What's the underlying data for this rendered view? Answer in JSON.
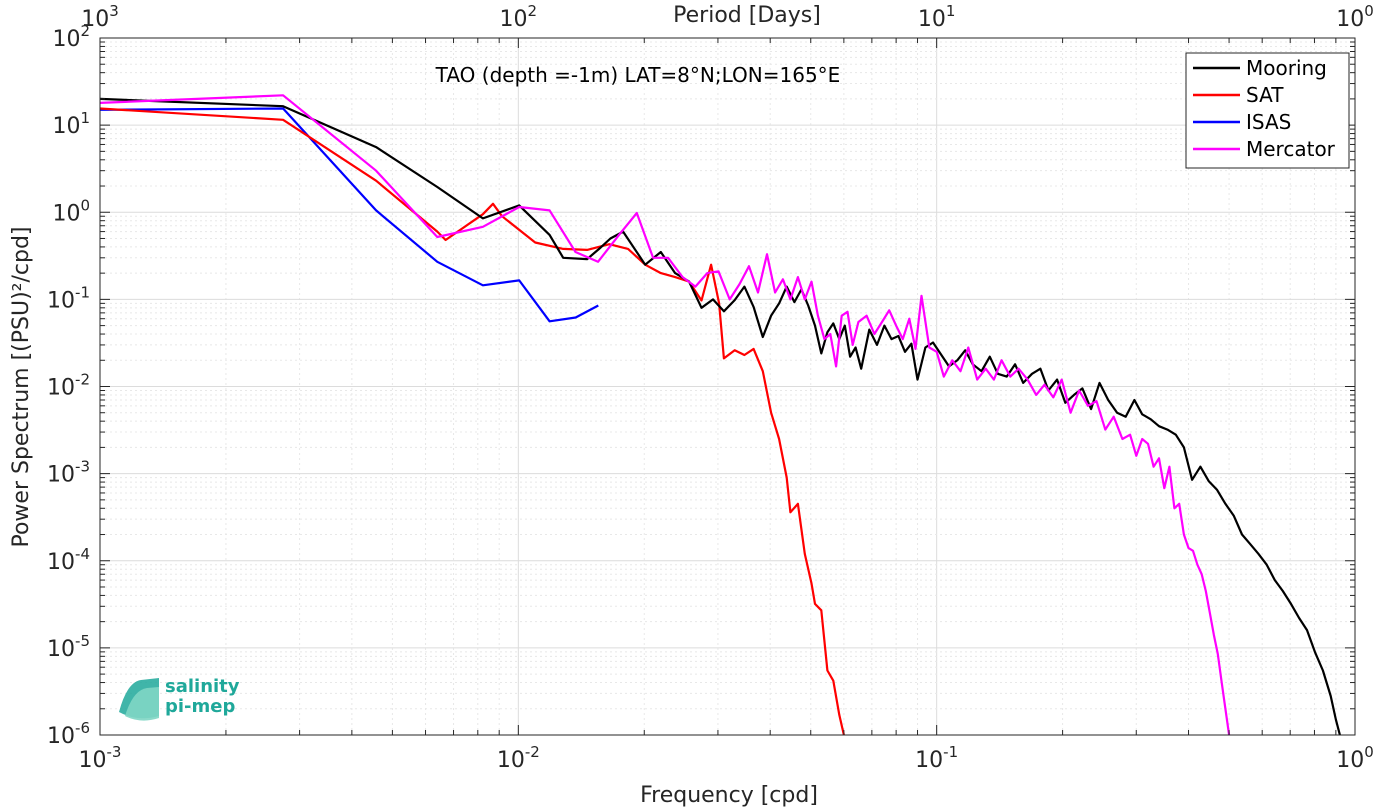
{
  "chart_data": {
    "type": "line",
    "title": "TAO (depth =-1m) LAT=8°N;LON=165°E",
    "xlabel": "Frequency [cpd]",
    "ylabel": "Power Spectrum [(PSU)²/cpd]",
    "top_xlabel": "Period [Days]",
    "x_scale": "log",
    "y_scale": "log",
    "xlim": [
      0.001,
      1
    ],
    "ylim": [
      1e-06,
      100
    ],
    "grid": true,
    "legend_position": "top-right",
    "x_ticks": [
      {
        "base": "10",
        "exp": "-3",
        "value": 0.001
      },
      {
        "base": "10",
        "exp": "-2",
        "value": 0.01
      },
      {
        "base": "10",
        "exp": "-1",
        "value": 0.1
      },
      {
        "base": "10",
        "exp": "0",
        "value": 1
      }
    ],
    "top_ticks": [
      {
        "base": "10",
        "exp": "3",
        "value": 0.001
      },
      {
        "base": "10",
        "exp": "2",
        "value": 0.01
      },
      {
        "base": "10",
        "exp": "1",
        "value": 0.1
      },
      {
        "base": "10",
        "exp": "0",
        "value": 1
      }
    ],
    "y_ticks": [
      {
        "base": "10",
        "exp": "2",
        "value": 100
      },
      {
        "base": "10",
        "exp": "1",
        "value": 10
      },
      {
        "base": "10",
        "exp": "0",
        "value": 1
      },
      {
        "base": "10",
        "exp": "-1",
        "value": 0.1
      },
      {
        "base": "10",
        "exp": "-2",
        "value": 0.01
      },
      {
        "base": "10",
        "exp": "-3",
        "value": 0.001
      },
      {
        "base": "10",
        "exp": "-4",
        "value": 0.0001
      },
      {
        "base": "10",
        "exp": "-5",
        "value": 1e-05
      },
      {
        "base": "10",
        "exp": "-6",
        "value": 1e-06
      }
    ],
    "series": [
      {
        "name": "Mooring",
        "color": "#000000",
        "points": [
          [
            0.001,
            20
          ],
          [
            0.00274,
            16.5
          ],
          [
            0.00457,
            5.6
          ],
          [
            0.0064,
            1.95
          ],
          [
            0.00823,
            0.85
          ],
          [
            0.01005,
            1.2
          ],
          [
            0.01188,
            0.55
          ],
          [
            0.0128,
            0.3
          ],
          [
            0.0146,
            0.29
          ],
          [
            0.0156,
            0.38
          ],
          [
            0.0166,
            0.5
          ],
          [
            0.0178,
            0.6
          ],
          [
            0.0201,
            0.25
          ],
          [
            0.0219,
            0.35
          ],
          [
            0.0237,
            0.2
          ],
          [
            0.0256,
            0.16
          ],
          [
            0.0274,
            0.08
          ],
          [
            0.0292,
            0.1
          ],
          [
            0.031,
            0.073
          ],
          [
            0.0329,
            0.098
          ],
          [
            0.0347,
            0.14
          ],
          [
            0.0365,
            0.082
          ],
          [
            0.0384,
            0.037
          ],
          [
            0.0402,
            0.065
          ],
          [
            0.042,
            0.09
          ],
          [
            0.0438,
            0.14
          ],
          [
            0.0457,
            0.093
          ],
          [
            0.0475,
            0.13
          ],
          [
            0.0493,
            0.085
          ],
          [
            0.0512,
            0.05
          ],
          [
            0.053,
            0.024
          ],
          [
            0.0548,
            0.042
          ],
          [
            0.0566,
            0.053
          ],
          [
            0.0585,
            0.035
          ],
          [
            0.0603,
            0.05
          ],
          [
            0.0621,
            0.022
          ],
          [
            0.064,
            0.028
          ],
          [
            0.066,
            0.016
          ],
          [
            0.069,
            0.045
          ],
          [
            0.072,
            0.03
          ],
          [
            0.075,
            0.05
          ],
          [
            0.078,
            0.035
          ],
          [
            0.081,
            0.038
          ],
          [
            0.084,
            0.025
          ],
          [
            0.087,
            0.031
          ],
          [
            0.09,
            0.012
          ],
          [
            0.094,
            0.028
          ],
          [
            0.098,
            0.032
          ],
          [
            0.102,
            0.024
          ],
          [
            0.107,
            0.017
          ],
          [
            0.112,
            0.02
          ],
          [
            0.117,
            0.026
          ],
          [
            0.122,
            0.018
          ],
          [
            0.128,
            0.015
          ],
          [
            0.134,
            0.022
          ],
          [
            0.14,
            0.014
          ],
          [
            0.147,
            0.013
          ],
          [
            0.154,
            0.018
          ],
          [
            0.161,
            0.011
          ],
          [
            0.169,
            0.014
          ],
          [
            0.177,
            0.016
          ],
          [
            0.185,
            0.009
          ],
          [
            0.194,
            0.012
          ],
          [
            0.203,
            0.0065
          ],
          [
            0.213,
            0.008
          ],
          [
            0.223,
            0.0095
          ],
          [
            0.234,
            0.0055
          ],
          [
            0.245,
            0.011
          ],
          [
            0.257,
            0.007
          ],
          [
            0.27,
            0.005
          ],
          [
            0.283,
            0.0045
          ],
          [
            0.297,
            0.007
          ],
          [
            0.31,
            0.0048
          ],
          [
            0.325,
            0.0042
          ],
          [
            0.34,
            0.0035
          ],
          [
            0.356,
            0.0032
          ],
          [
            0.373,
            0.0028
          ],
          [
            0.39,
            0.002
          ],
          [
            0.408,
            0.00085
          ],
          [
            0.427,
            0.0012
          ],
          [
            0.447,
            0.00082
          ],
          [
            0.468,
            0.00065
          ],
          [
            0.49,
            0.00045
          ],
          [
            0.513,
            0.00033
          ],
          [
            0.537,
            0.0002
          ],
          [
            0.562,
            0.000155
          ],
          [
            0.588,
            0.00012
          ],
          [
            0.615,
            9e-05
          ],
          [
            0.643,
            6e-05
          ],
          [
            0.672,
            4.5e-05
          ],
          [
            0.703,
            3.2e-05
          ],
          [
            0.735,
            2.2e-05
          ],
          [
            0.768,
            1.6e-05
          ],
          [
            0.802,
            9e-06
          ],
          [
            0.838,
            5.5e-06
          ],
          [
            0.875,
            2.8e-06
          ],
          [
            0.9,
            1.5e-06
          ],
          [
            0.92,
            1e-06
          ]
        ]
      },
      {
        "name": "SAT",
        "color": "#ff0000",
        "points": [
          [
            0.001,
            15.5
          ],
          [
            0.00274,
            11.5
          ],
          [
            0.00457,
            2.3
          ],
          [
            0.0064,
            0.6
          ],
          [
            0.0067,
            0.48
          ],
          [
            0.00823,
            0.95
          ],
          [
            0.0087,
            1.25
          ],
          [
            0.00914,
            0.9
          ],
          [
            0.01097,
            0.45
          ],
          [
            0.0128,
            0.38
          ],
          [
            0.0146,
            0.37
          ],
          [
            0.0165,
            0.43
          ],
          [
            0.0183,
            0.38
          ],
          [
            0.0201,
            0.25
          ],
          [
            0.0219,
            0.2
          ],
          [
            0.0237,
            0.18
          ],
          [
            0.0256,
            0.16
          ],
          [
            0.0274,
            0.097
          ],
          [
            0.0289,
            0.25
          ],
          [
            0.0302,
            0.09
          ],
          [
            0.031,
            0.021
          ],
          [
            0.0329,
            0.026
          ],
          [
            0.0347,
            0.023
          ],
          [
            0.0365,
            0.027
          ],
          [
            0.0384,
            0.015
          ],
          [
            0.0402,
            0.005
          ],
          [
            0.042,
            0.0025
          ],
          [
            0.0438,
            0.0009
          ],
          [
            0.0447,
            0.00036
          ],
          [
            0.0466,
            0.00045
          ],
          [
            0.0484,
            0.00012
          ],
          [
            0.0502,
            5.5e-05
          ],
          [
            0.0512,
            3.2e-05
          ],
          [
            0.053,
            2.7e-05
          ],
          [
            0.0548,
            5.5e-06
          ],
          [
            0.0566,
            4.2e-06
          ],
          [
            0.0585,
            1.7e-06
          ],
          [
            0.06,
            1e-06
          ]
        ]
      },
      {
        "name": "ISAS",
        "color": "#0000ff",
        "points": [
          [
            0.001,
            15
          ],
          [
            0.00274,
            15.5
          ],
          [
            0.00457,
            1.05
          ],
          [
            0.0064,
            0.27
          ],
          [
            0.00823,
            0.145
          ],
          [
            0.01005,
            0.165
          ],
          [
            0.01188,
            0.056
          ],
          [
            0.01371,
            0.062
          ],
          [
            0.01553,
            0.085
          ]
        ]
      },
      {
        "name": "Mercator",
        "color": "#ff00ff",
        "points": [
          [
            0.001,
            18
          ],
          [
            0.00274,
            22
          ],
          [
            0.00457,
            3
          ],
          [
            0.0064,
            0.52
          ],
          [
            0.00823,
            0.68
          ],
          [
            0.01005,
            1.15
          ],
          [
            0.01188,
            1.05
          ],
          [
            0.0137,
            0.35
          ],
          [
            0.0155,
            0.27
          ],
          [
            0.0174,
            0.55
          ],
          [
            0.0192,
            0.98
          ],
          [
            0.021,
            0.3
          ],
          [
            0.0228,
            0.3
          ],
          [
            0.0247,
            0.18
          ],
          [
            0.0265,
            0.14
          ],
          [
            0.0283,
            0.2
          ],
          [
            0.0301,
            0.21
          ],
          [
            0.032,
            0.1
          ],
          [
            0.0338,
            0.15
          ],
          [
            0.0356,
            0.24
          ],
          [
            0.0374,
            0.12
          ],
          [
            0.0393,
            0.33
          ],
          [
            0.0411,
            0.12
          ],
          [
            0.0429,
            0.17
          ],
          [
            0.0447,
            0.1
          ],
          [
            0.0466,
            0.18
          ],
          [
            0.0484,
            0.1
          ],
          [
            0.0502,
            0.16
          ],
          [
            0.052,
            0.065
          ],
          [
            0.0539,
            0.035
          ],
          [
            0.0557,
            0.04
          ],
          [
            0.0575,
            0.017
          ],
          [
            0.0593,
            0.065
          ],
          [
            0.0612,
            0.072
          ],
          [
            0.063,
            0.03
          ],
          [
            0.065,
            0.055
          ],
          [
            0.068,
            0.065
          ],
          [
            0.071,
            0.04
          ],
          [
            0.074,
            0.055
          ],
          [
            0.077,
            0.075
          ],
          [
            0.08,
            0.05
          ],
          [
            0.083,
            0.035
          ],
          [
            0.086,
            0.06
          ],
          [
            0.089,
            0.027
          ],
          [
            0.092,
            0.11
          ],
          [
            0.096,
            0.028
          ],
          [
            0.1,
            0.025
          ],
          [
            0.104,
            0.013
          ],
          [
            0.109,
            0.02
          ],
          [
            0.114,
            0.015
          ],
          [
            0.119,
            0.028
          ],
          [
            0.125,
            0.012
          ],
          [
            0.131,
            0.016
          ],
          [
            0.137,
            0.012
          ],
          [
            0.143,
            0.02
          ],
          [
            0.15,
            0.013
          ],
          [
            0.157,
            0.016
          ],
          [
            0.165,
            0.012
          ],
          [
            0.173,
            0.008
          ],
          [
            0.181,
            0.0105
          ],
          [
            0.19,
            0.0075
          ],
          [
            0.199,
            0.012
          ],
          [
            0.209,
            0.005
          ],
          [
            0.219,
            0.009
          ],
          [
            0.23,
            0.006
          ],
          [
            0.241,
            0.0068
          ],
          [
            0.253,
            0.0032
          ],
          [
            0.265,
            0.0045
          ],
          [
            0.278,
            0.0025
          ],
          [
            0.29,
            0.0028
          ],
          [
            0.3,
            0.0016
          ],
          [
            0.31,
            0.0025
          ],
          [
            0.32,
            0.0022
          ],
          [
            0.33,
            0.0012
          ],
          [
            0.34,
            0.0015
          ],
          [
            0.35,
            0.00068
          ],
          [
            0.36,
            0.0012
          ],
          [
            0.37,
            0.0004
          ],
          [
            0.38,
            0.00045
          ],
          [
            0.39,
            0.0002
          ],
          [
            0.4,
            0.00014
          ],
          [
            0.41,
            0.00013
          ],
          [
            0.42,
            9e-05
          ],
          [
            0.43,
            7e-05
          ],
          [
            0.44,
            4.5e-05
          ],
          [
            0.45,
            2.5e-05
          ],
          [
            0.46,
            1.4e-05
          ],
          [
            0.47,
            8.5e-06
          ],
          [
            0.48,
            4e-06
          ],
          [
            0.49,
            2e-06
          ],
          [
            0.5,
            1e-06
          ]
        ]
      }
    ]
  },
  "logo": {
    "line1": "salinity",
    "line2": "pi-mep"
  }
}
